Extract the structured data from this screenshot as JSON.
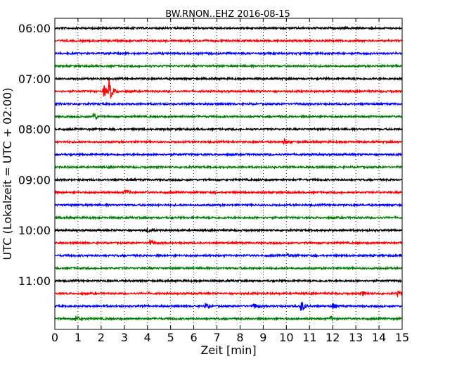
{
  "chart_data": {
    "type": "line",
    "title": "BW.RNON..EHZ 2016-08-15",
    "xlabel": "Zeit  [min]",
    "ylabel": "UTC (Lokalzeit = UTC + 02:00)",
    "xlim": [
      0,
      15
    ],
    "x_ticks": [
      "0",
      "1",
      "2",
      "3",
      "4",
      "5",
      "6",
      "7",
      "8",
      "9",
      "10",
      "11",
      "12",
      "13",
      "14",
      "15"
    ],
    "y_ticks": [
      "06:00",
      "07:00",
      "08:00",
      "09:00",
      "10:00",
      "11:00"
    ],
    "y_tick_rows": [
      0,
      4,
      8,
      12,
      16,
      20
    ],
    "grid": true,
    "trace_interval_min": 15,
    "start_time": "06:00",
    "row_colors": [
      "#000000",
      "#ff0000",
      "#0000ff",
      "#008000"
    ],
    "trace_count": 24,
    "events": [
      {
        "row": 5,
        "x": 2.1,
        "amp": 9
      },
      {
        "row": 5,
        "x": 2.35,
        "amp": 17
      },
      {
        "row": 7,
        "x": 1.65,
        "amp": 6
      },
      {
        "row": 9,
        "x": 9.9,
        "amp": 4
      },
      {
        "row": 13,
        "x": 3.05,
        "amp": 4
      },
      {
        "row": 16,
        "x": 4.0,
        "amp": 3
      },
      {
        "row": 17,
        "x": 4.1,
        "amp": 4
      },
      {
        "row": 18,
        "x": 10.05,
        "amp": 3
      },
      {
        "row": 21,
        "x": 13.3,
        "amp": 3
      },
      {
        "row": 21,
        "x": 14.8,
        "amp": 3
      },
      {
        "row": 22,
        "x": 10.6,
        "amp": 11
      },
      {
        "row": 22,
        "x": 6.5,
        "amp": 4
      },
      {
        "row": 22,
        "x": 8.6,
        "amp": 4
      },
      {
        "row": 22,
        "x": 12.0,
        "amp": 4
      },
      {
        "row": 23,
        "x": 0.9,
        "amp": 4
      },
      {
        "row": 23,
        "x": 11.9,
        "amp": 3
      }
    ]
  }
}
